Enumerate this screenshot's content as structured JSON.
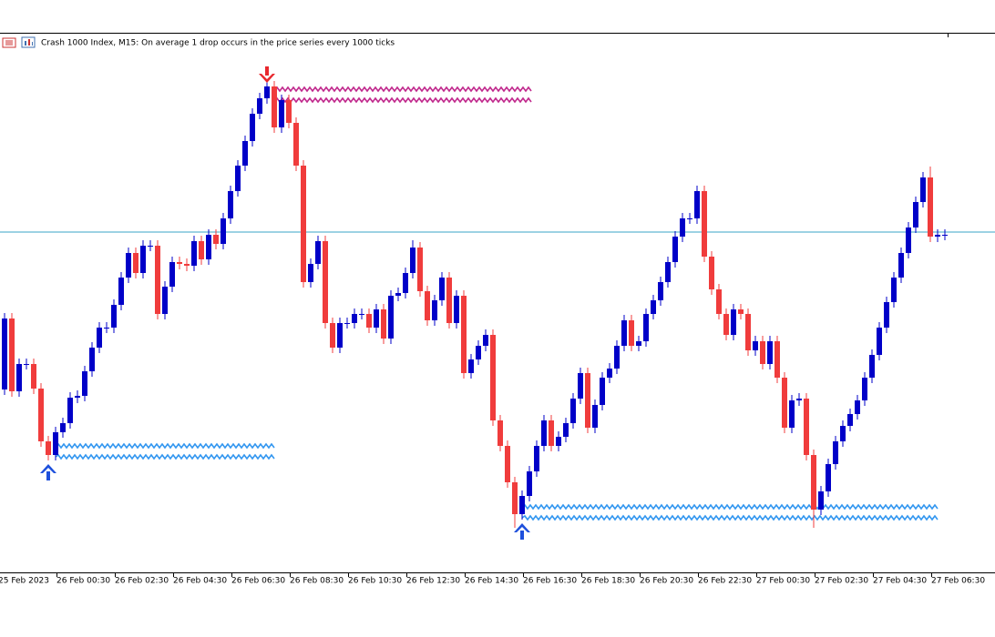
{
  "chart_data": {
    "type": "candlestick",
    "title": "Crash 1000 Index, M15:  On average 1 drop occurs in the price series every 1000 ticks",
    "x_labels": [
      "25 Feb 2023",
      "26 Feb 00:30",
      "26 Feb 02:30",
      "26 Feb 04:30",
      "26 Feb 06:30",
      "26 Feb 08:30",
      "26 Feb 10:30",
      "26 Feb 12:30",
      "26 Feb 14:30",
      "26 Feb 16:30",
      "26 Feb 18:30",
      "26 Feb 20:30",
      "26 Feb 22:30",
      "27 Feb 00:30",
      "27 Feb 02:30",
      "27 Feb 04:30",
      "27 Feb 06:30"
    ],
    "ylim": [
      0,
      590
    ],
    "up_color": "#0000c8",
    "down_color": "#f03c3c",
    "open": [
      200,
      278,
      198,
      228,
      228,
      201,
      143,
      128,
      153,
      163,
      191,
      193,
      220,
      246,
      268,
      268,
      293,
      323,
      350,
      328,
      358,
      358,
      283,
      313,
      340,
      338,
      336,
      363,
      343,
      370,
      360,
      388,
      418,
      446,
      473,
      503,
      520,
      533,
      488,
      518,
      493,
      446,
      318,
      338,
      363,
      273,
      246,
      273,
      273,
      283,
      283,
      268,
      288,
      256,
      303,
      306,
      328,
      356,
      308,
      276,
      298,
      323,
      273,
      303,
      218,
      233,
      248,
      260,
      166,
      138,
      98,
      63,
      83,
      110,
      138,
      166,
      138,
      148,
      163,
      190,
      218,
      158,
      183,
      213,
      223,
      248,
      276,
      248,
      253,
      283,
      298,
      318,
      340,
      368,
      388,
      388,
      418,
      346,
      310,
      283,
      260,
      288,
      283,
      243,
      253,
      228,
      253,
      213,
      158,
      188,
      190,
      128,
      68,
      88,
      118,
      143,
      160,
      173,
      188,
      213,
      238,
      268,
      296,
      323,
      350,
      378,
      406,
      433,
      368,
      370
    ],
    "high": [
      284,
      284,
      234,
      234,
      234,
      207,
      149,
      159,
      169,
      197,
      199,
      226,
      252,
      274,
      274,
      299,
      329,
      356,
      356,
      364,
      364,
      364,
      319,
      346,
      346,
      344,
      369,
      369,
      376,
      376,
      394,
      424,
      452,
      479,
      509,
      526,
      540,
      539,
      524,
      524,
      499,
      452,
      344,
      369,
      369,
      279,
      279,
      279,
      289,
      289,
      289,
      294,
      294,
      309,
      312,
      334,
      364,
      362,
      314,
      304,
      329,
      329,
      309,
      309,
      239,
      254,
      266,
      266,
      172,
      144,
      104,
      89,
      116,
      144,
      172,
      172,
      154,
      169,
      196,
      224,
      224,
      189,
      219,
      229,
      254,
      282,
      282,
      259,
      289,
      304,
      324,
      346,
      374,
      394,
      394,
      424,
      424,
      352,
      316,
      289,
      294,
      294,
      289,
      259,
      259,
      259,
      259,
      219,
      194,
      196,
      196,
      134,
      94,
      124,
      149,
      166,
      179,
      194,
      219,
      244,
      274,
      302,
      329,
      356,
      384,
      412,
      439,
      445,
      376,
      376
    ],
    "low": [
      194,
      192,
      192,
      222,
      195,
      137,
      122,
      122,
      147,
      157,
      185,
      187,
      214,
      240,
      262,
      262,
      287,
      317,
      322,
      322,
      352,
      277,
      277,
      307,
      332,
      330,
      330,
      337,
      337,
      354,
      354,
      382,
      412,
      440,
      467,
      497,
      514,
      482,
      482,
      487,
      440,
      312,
      312,
      332,
      267,
      240,
      240,
      267,
      267,
      277,
      262,
      262,
      250,
      250,
      297,
      300,
      322,
      302,
      270,
      270,
      292,
      267,
      267,
      212,
      212,
      227,
      242,
      160,
      132,
      92,
      48,
      57,
      77,
      104,
      132,
      132,
      132,
      142,
      157,
      184,
      152,
      152,
      177,
      207,
      217,
      242,
      242,
      242,
      247,
      277,
      292,
      312,
      334,
      362,
      382,
      382,
      340,
      304,
      277,
      254,
      254,
      277,
      237,
      237,
      222,
      222,
      207,
      152,
      152,
      182,
      122,
      48,
      62,
      82,
      112,
      137,
      154,
      167,
      182,
      207,
      232,
      262,
      290,
      317,
      344,
      372,
      400,
      362,
      362,
      364
    ],
    "close": [
      278,
      198,
      228,
      228,
      201,
      143,
      128,
      153,
      163,
      191,
      193,
      220,
      246,
      268,
      268,
      293,
      323,
      350,
      328,
      358,
      358,
      283,
      313,
      340,
      338,
      336,
      363,
      343,
      370,
      360,
      388,
      418,
      446,
      473,
      503,
      520,
      533,
      488,
      518,
      493,
      446,
      318,
      338,
      363,
      273,
      246,
      273,
      273,
      283,
      283,
      268,
      288,
      256,
      303,
      306,
      328,
      356,
      308,
      276,
      298,
      323,
      273,
      303,
      218,
      233,
      248,
      260,
      166,
      138,
      98,
      63,
      83,
      110,
      138,
      166,
      138,
      148,
      163,
      190,
      218,
      158,
      183,
      213,
      223,
      248,
      276,
      248,
      253,
      283,
      298,
      318,
      340,
      368,
      388,
      388,
      418,
      346,
      310,
      283,
      260,
      288,
      283,
      243,
      253,
      228,
      253,
      213,
      158,
      188,
      190,
      128,
      68,
      88,
      118,
      143,
      160,
      173,
      188,
      213,
      238,
      268,
      296,
      323,
      350,
      378,
      406,
      433,
      368,
      370,
      370
    ],
    "hline": {
      "value": 373,
      "color": "#3aa6c7"
    },
    "zones": [
      {
        "color": "#c0288c",
        "start": 37,
        "end": 72,
        "top": 530,
        "bottom": 518
      },
      {
        "color": "#3296f0",
        "start": 7,
        "end": 37,
        "top": 138,
        "bottom": 126
      },
      {
        "color": "#3296f0",
        "start": 71,
        "end": 128,
        "top": 71,
        "bottom": 59
      }
    ],
    "arrows": [
      {
        "index": 36,
        "direction": "down",
        "value": 533,
        "color": "#e8282e"
      },
      {
        "index": 6,
        "direction": "up",
        "value": 122,
        "color": "#1e50dc"
      },
      {
        "index": 71,
        "direction": "up",
        "value": 57,
        "color": "#1e50dc"
      }
    ]
  }
}
